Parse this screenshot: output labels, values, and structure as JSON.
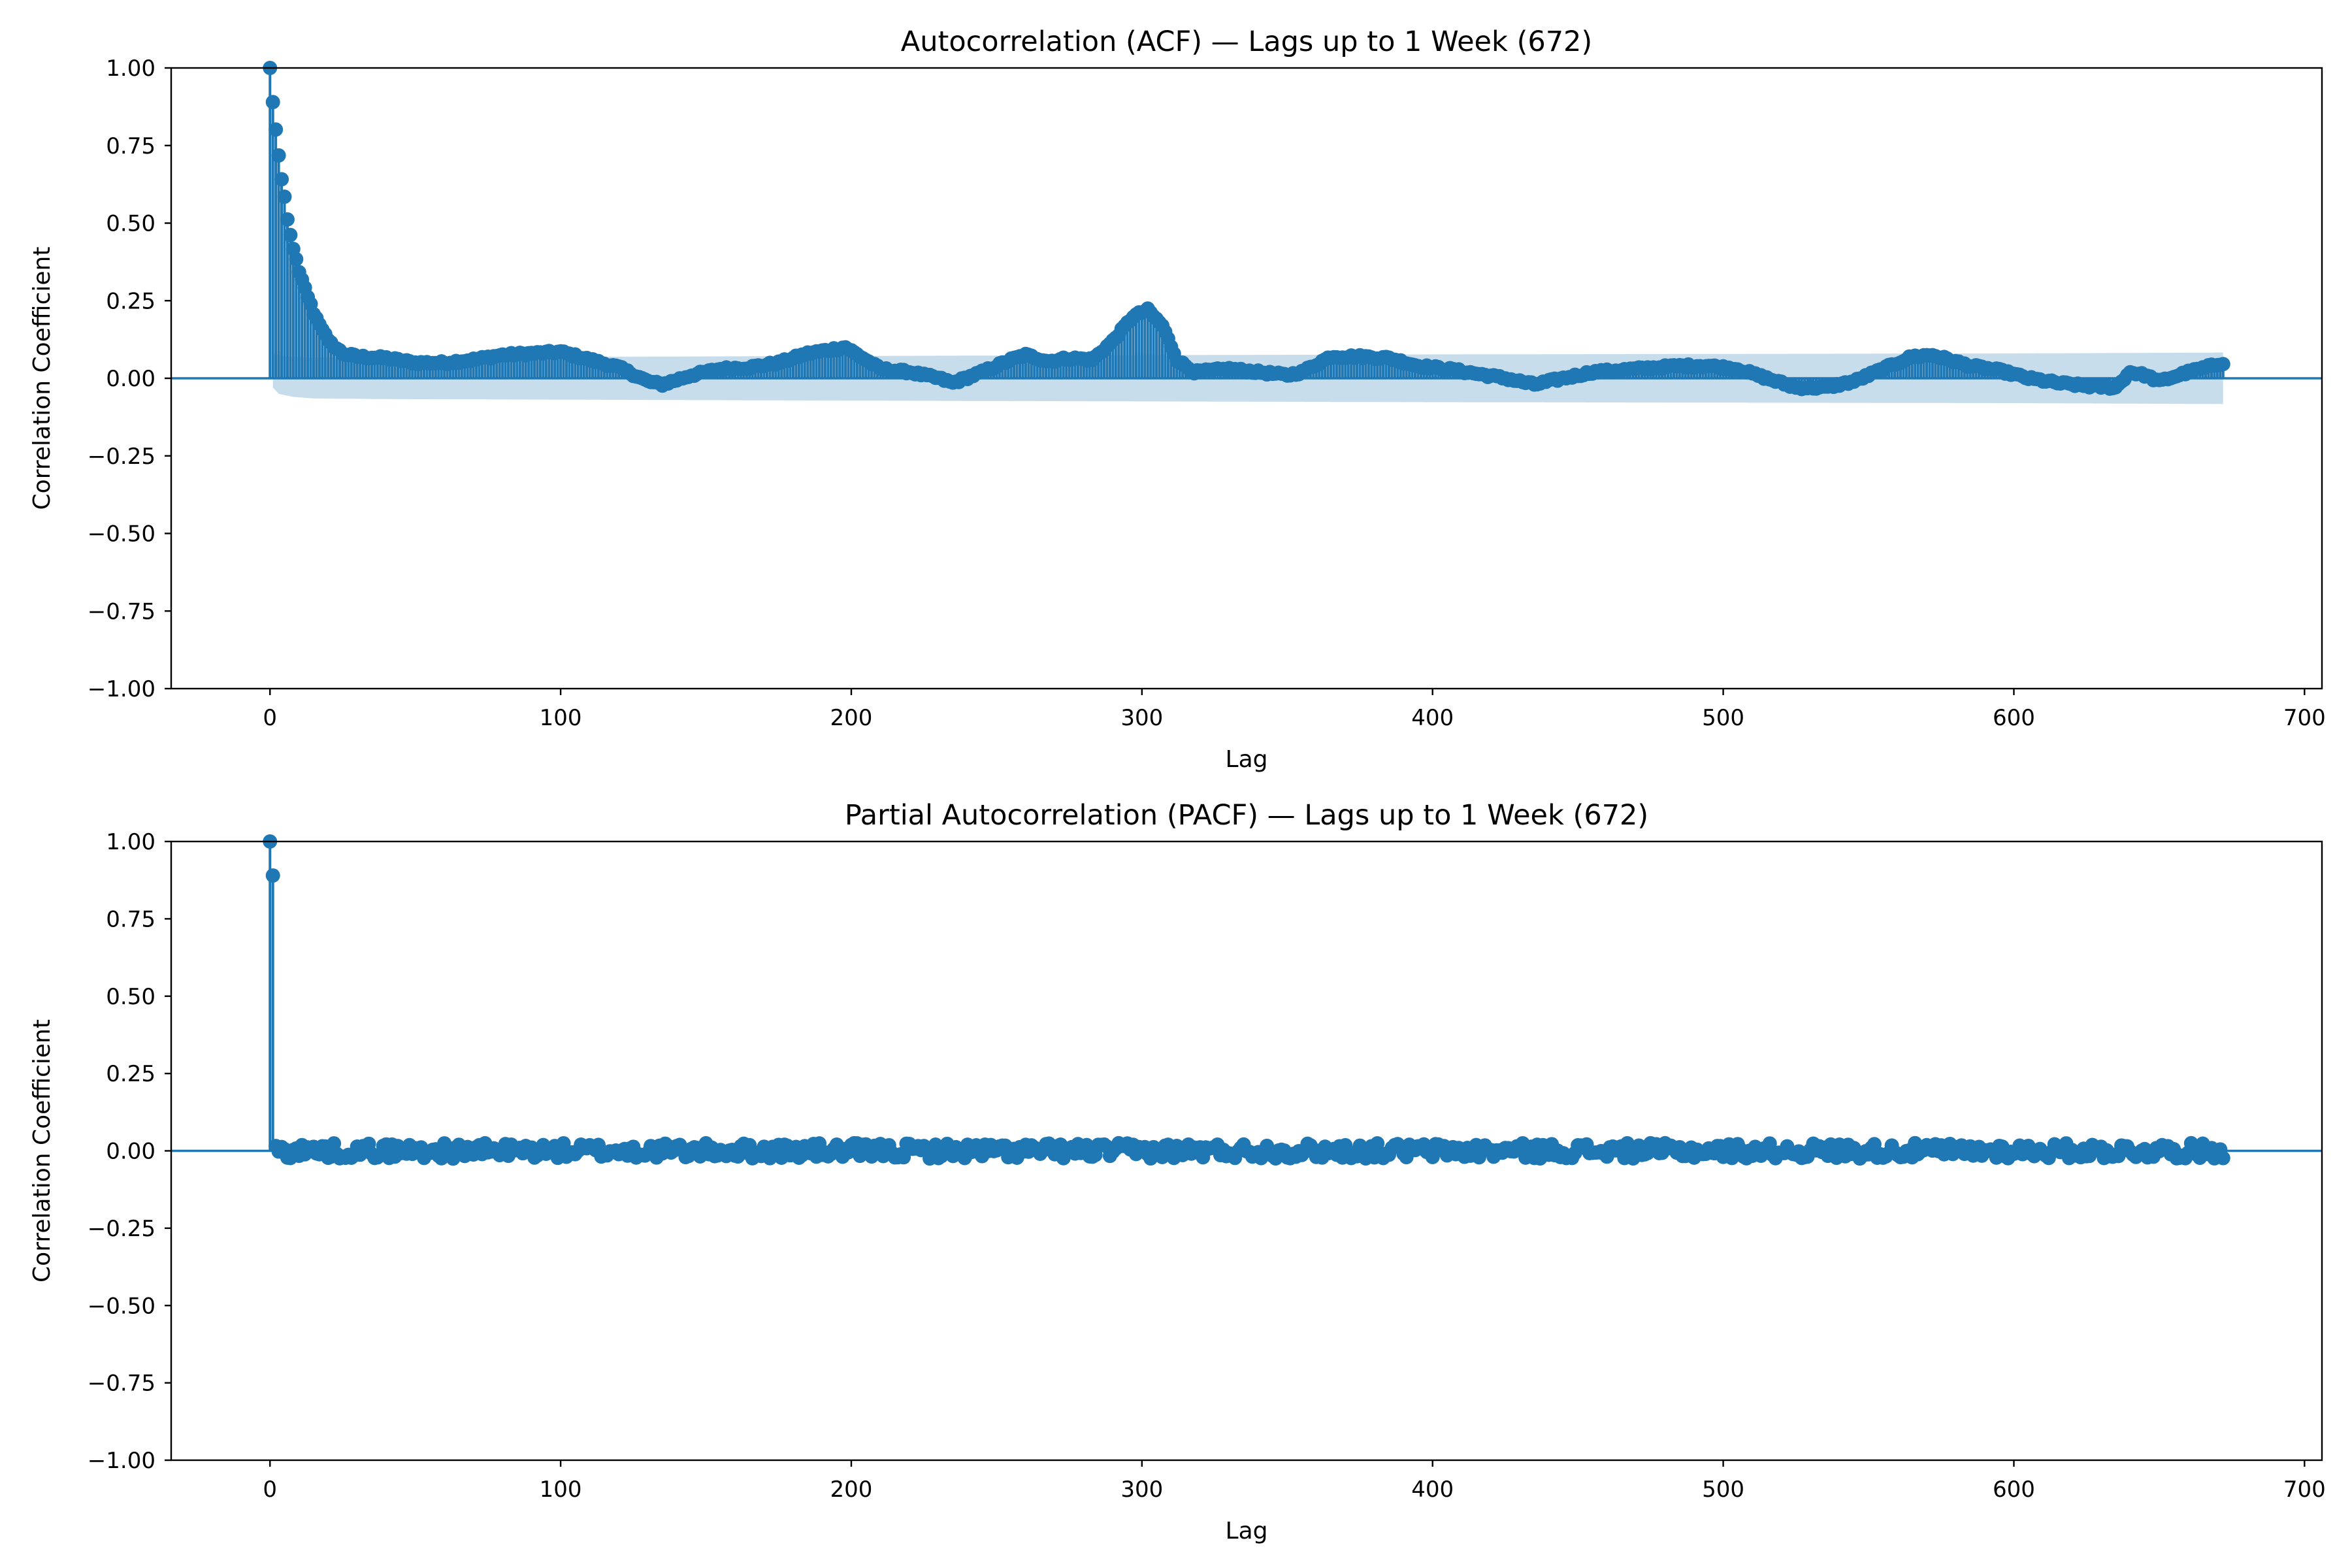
{
  "colors": {
    "series": "#1f77b4",
    "band": "#1f77b4",
    "axis": "#000000"
  },
  "chart_data": [
    {
      "type": "stem",
      "title": "Autocorrelation (ACF) — Lags up to 1 Week (672)",
      "xlabel": "Lag",
      "ylabel": "Correlation Coefficient",
      "xlim": [
        -34,
        706
      ],
      "ylim": [
        -1.0,
        1.0
      ],
      "xticks": [
        "0",
        "100",
        "200",
        "300",
        "400",
        "500",
        "600",
        "700"
      ],
      "yticks": [
        "1.00",
        "0.75",
        "0.50",
        "0.25",
        "0.00",
        "−0.25",
        "−0.50",
        "−0.75",
        "−1.00"
      ],
      "grid": false,
      "legend": "none",
      "max_lag": 672,
      "confidence_band": {
        "upper": [
          [
            1,
            0.08
          ],
          [
            5,
            0.07
          ],
          [
            15,
            0.067
          ],
          [
            40,
            0.067
          ],
          [
            200,
            0.072
          ],
          [
            400,
            0.077
          ],
          [
            600,
            0.08
          ],
          [
            672,
            0.083
          ]
        ],
        "lower": [
          [
            1,
            -0.03
          ],
          [
            3,
            -0.05
          ],
          [
            8,
            -0.06
          ],
          [
            15,
            -0.065
          ],
          [
            40,
            -0.067
          ],
          [
            200,
            -0.072
          ],
          [
            400,
            -0.077
          ],
          [
            600,
            -0.08
          ],
          [
            672,
            -0.083
          ]
        ]
      },
      "profile": [
        [
          0,
          1.0
        ],
        [
          1,
          0.89
        ],
        [
          2,
          0.8
        ],
        [
          3,
          0.72
        ],
        [
          4,
          0.64
        ],
        [
          5,
          0.58
        ],
        [
          6,
          0.51
        ],
        [
          7,
          0.46
        ],
        [
          8,
          0.42
        ],
        [
          9,
          0.38
        ],
        [
          10,
          0.34
        ],
        [
          12,
          0.29
        ],
        [
          15,
          0.21
        ],
        [
          18,
          0.16
        ],
        [
          20,
          0.12
        ],
        [
          25,
          0.08
        ],
        [
          30,
          0.07
        ],
        [
          40,
          0.065
        ],
        [
          50,
          0.05
        ],
        [
          60,
          0.05
        ],
        [
          70,
          0.06
        ],
        [
          80,
          0.075
        ],
        [
          90,
          0.08
        ],
        [
          100,
          0.085
        ],
        [
          110,
          0.06
        ],
        [
          120,
          0.035
        ],
        [
          130,
          -0.01
        ],
        [
          135,
          -0.02
        ],
        [
          145,
          0.01
        ],
        [
          155,
          0.03
        ],
        [
          165,
          0.035
        ],
        [
          175,
          0.05
        ],
        [
          185,
          0.08
        ],
        [
          198,
          0.1
        ],
        [
          210,
          0.03
        ],
        [
          220,
          0.02
        ],
        [
          230,
          0.0
        ],
        [
          235,
          -0.015
        ],
        [
          245,
          0.02
        ],
        [
          255,
          0.06
        ],
        [
          260,
          0.075
        ],
        [
          268,
          0.055
        ],
        [
          275,
          0.065
        ],
        [
          283,
          0.06
        ],
        [
          290,
          0.12
        ],
        [
          297,
          0.2
        ],
        [
          302,
          0.22
        ],
        [
          307,
          0.17
        ],
        [
          312,
          0.06
        ],
        [
          318,
          0.02
        ],
        [
          330,
          0.03
        ],
        [
          340,
          0.02
        ],
        [
          350,
          0.01
        ],
        [
          355,
          0.02
        ],
        [
          365,
          0.07
        ],
        [
          375,
          0.07
        ],
        [
          385,
          0.065
        ],
        [
          395,
          0.04
        ],
        [
          405,
          0.03
        ],
        [
          415,
          0.015
        ],
        [
          425,
          0.0
        ],
        [
          435,
          -0.02
        ],
        [
          445,
          0.0
        ],
        [
          455,
          0.02
        ],
        [
          470,
          0.03
        ],
        [
          485,
          0.04
        ],
        [
          495,
          0.04
        ],
        [
          505,
          0.03
        ],
        [
          515,
          0.0
        ],
        [
          525,
          -0.03
        ],
        [
          535,
          -0.03
        ],
        [
          545,
          -0.01
        ],
        [
          555,
          0.03
        ],
        [
          565,
          0.07
        ],
        [
          572,
          0.075
        ],
        [
          585,
          0.04
        ],
        [
          595,
          0.025
        ],
        [
          605,
          0.0
        ],
        [
          615,
          -0.015
        ],
        [
          625,
          -0.025
        ],
        [
          635,
          -0.03
        ],
        [
          640,
          0.02
        ],
        [
          645,
          0.01
        ],
        [
          650,
          -0.01
        ],
        [
          660,
          0.02
        ],
        [
          672,
          0.05
        ]
      ]
    },
    {
      "type": "stem",
      "title": "Partial Autocorrelation (PACF) — Lags up to 1 Week (672)",
      "xlabel": "Lag",
      "ylabel": "Correlation Coefficient",
      "xlim": [
        -34,
        706
      ],
      "ylim": [
        -1.0,
        1.0
      ],
      "xticks": [
        "0",
        "100",
        "200",
        "300",
        "400",
        "500",
        "600",
        "700"
      ],
      "yticks": [
        "1.00",
        "0.75",
        "0.50",
        "0.25",
        "0.00",
        "−0.25",
        "−0.50",
        "−0.75",
        "−1.00"
      ],
      "grid": false,
      "legend": "none",
      "max_lag": 672,
      "lag_values": [
        [
          0,
          1.0
        ],
        [
          1,
          0.89
        ]
      ],
      "noise_amplitude": 0.025
    }
  ]
}
